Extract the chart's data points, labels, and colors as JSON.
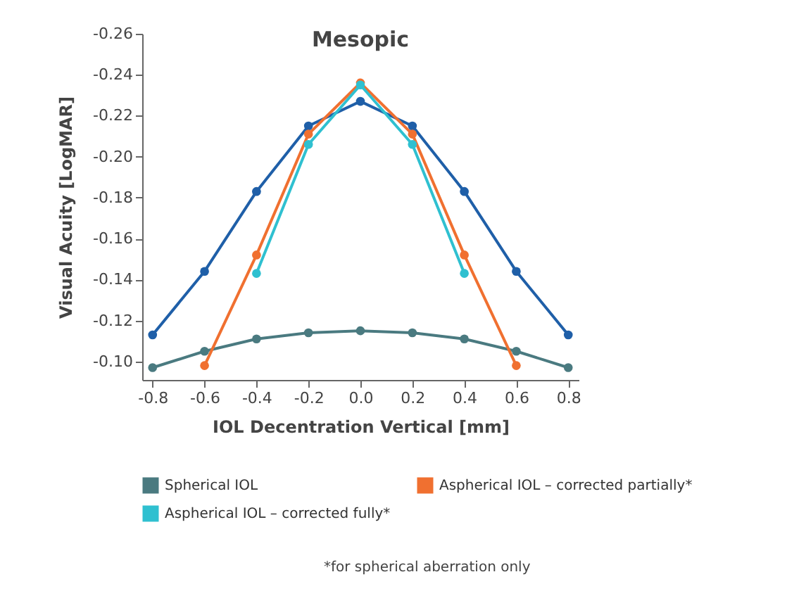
{
  "chart_data": {
    "type": "line",
    "title": "Mesopic",
    "xlabel": "IOL Decentration Vertical [mm]",
    "ylabel": "Visual Acuity [LogMAR]",
    "x": [
      -0.8,
      -0.6,
      -0.4,
      -0.2,
      0,
      0.2,
      0.4,
      0.6,
      0.8
    ],
    "series": [
      {
        "color": "#1f5fa8",
        "values": [
          -0.113,
          -0.144,
          -0.183,
          -0.215,
          -0.227,
          -0.215,
          -0.183,
          -0.144,
          -0.113
        ]
      },
      {
        "name": "Spherical IOL",
        "color": "#4a7a80",
        "values": [
          -0.097,
          -0.105,
          -0.111,
          -0.114,
          -0.115,
          -0.114,
          -0.111,
          -0.105,
          -0.097
        ]
      },
      {
        "name": "Aspherical IOL – corrected partially*",
        "color": "#f07030",
        "values": [
          null,
          -0.098,
          -0.152,
          -0.211,
          -0.236,
          -0.211,
          -0.152,
          -0.098,
          null
        ]
      },
      {
        "name": "Aspherical IOL – corrected fully*",
        "color": "#2fc0d0",
        "values": [
          null,
          null,
          -0.143,
          -0.206,
          -0.235,
          -0.206,
          -0.143,
          null,
          null
        ]
      }
    ],
    "xlim": [
      -0.84,
      0.84
    ],
    "xticks": [
      {
        "value": -0.8,
        "label": "-0.8"
      },
      {
        "value": -0.6,
        "label": "-0.6"
      },
      {
        "value": -0.4,
        "label": "-0.4"
      },
      {
        "value": -0.2,
        "label": "-0.2"
      },
      {
        "value": 0,
        "label": "0.0"
      },
      {
        "value": 0.2,
        "label": "0.2"
      },
      {
        "value": 0.4,
        "label": "0.4"
      },
      {
        "value": 0.6,
        "label": "0.6"
      },
      {
        "value": 0.8,
        "label": "0.8"
      }
    ],
    "ylim": [
      -0.091,
      -0.26
    ],
    "yticks": [
      {
        "value": -0.1,
        "label": "-0.10"
      },
      {
        "value": -0.12,
        "label": "-0.12"
      },
      {
        "value": -0.14,
        "label": "-0.14"
      },
      {
        "value": -0.16,
        "label": "-0.16"
      },
      {
        "value": -0.18,
        "label": "-0.18"
      },
      {
        "value": -0.2,
        "label": "-0.20"
      },
      {
        "value": -0.22,
        "label": "-0.22"
      },
      {
        "value": -0.24,
        "label": "-0.24"
      },
      {
        "value": -0.26,
        "label": "-0.26"
      }
    ],
    "grid": false,
    "marker": "circle",
    "line_style": "solid",
    "legend": "bottom",
    "annotations": [
      "*for spherical aberration only"
    ]
  }
}
